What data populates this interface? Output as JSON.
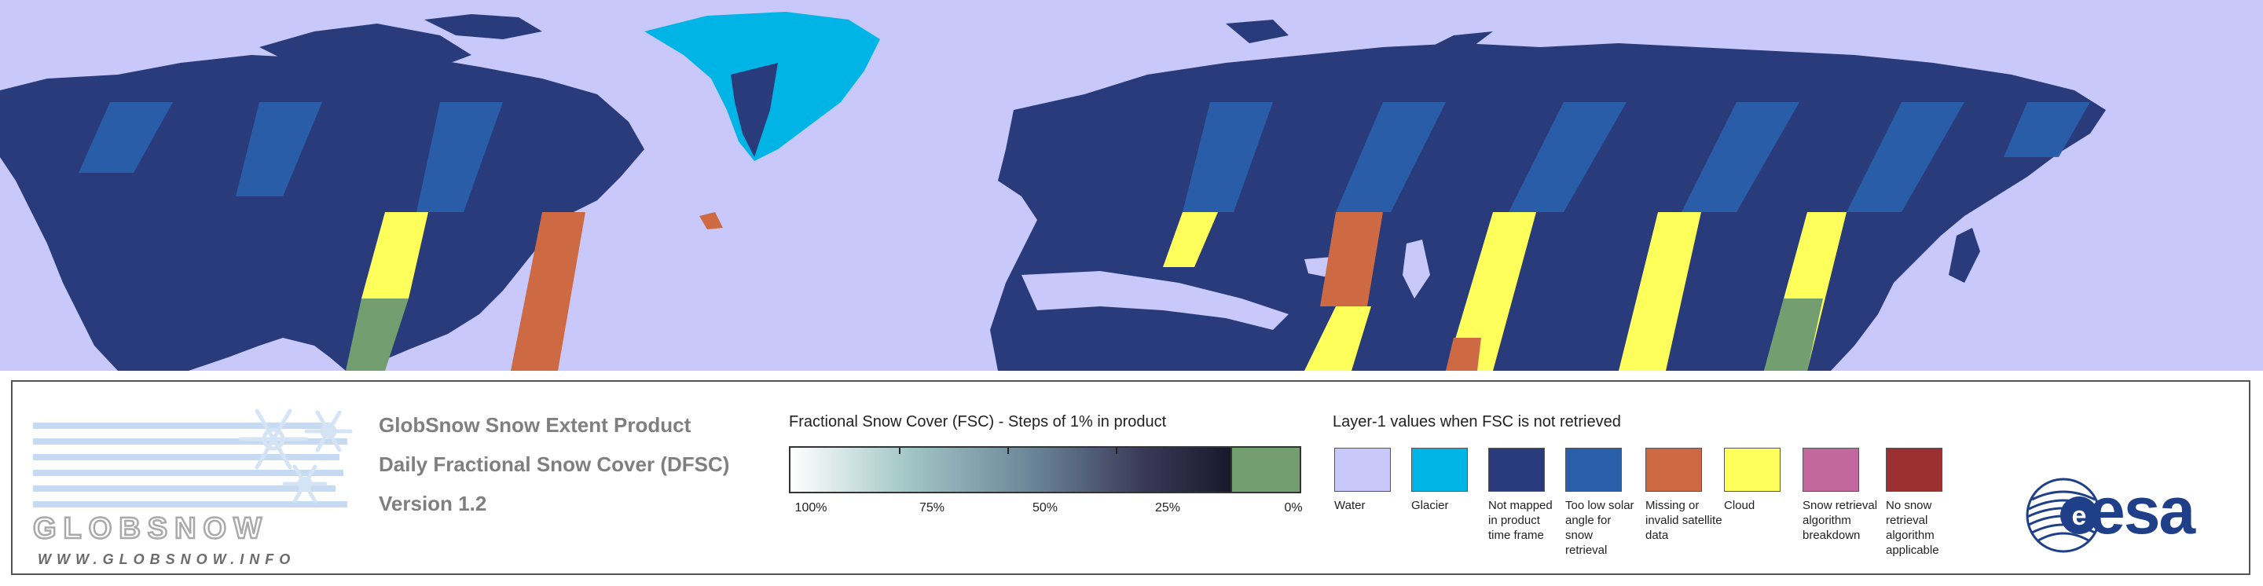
{
  "map": {
    "ocean_color": "#c8c8fa",
    "land_color": "#293b7a",
    "glacier_color": "#00b4e6",
    "solar_angle_color": "#2a5fab",
    "missing_color": "#cd6a44",
    "cloud_color": "#ffff5c",
    "snow_free_color": "#739e6f"
  },
  "logo": {
    "word": "GLOBSNOW",
    "url": "WWW.GLOBSNOW.INFO",
    "snowflake_icon": "snowflake-icon"
  },
  "product": {
    "line1": "GlobSnow Snow Extent Product",
    "line2": "Daily Fractional Snow Cover (DFSC)",
    "line3": "Version 1.2"
  },
  "fsc_legend": {
    "title": "Fractional Snow Cover (FSC) - Steps of 1% in product",
    "ticks": [
      {
        "label": "100%",
        "value": 100
      },
      {
        "label": "75%",
        "value": 75
      },
      {
        "label": "50%",
        "value": 50
      },
      {
        "label": "25%",
        "value": 25
      },
      {
        "label": "0%",
        "value": 0
      }
    ]
  },
  "layer_legend": {
    "title": "Layer-1 values when FSC is not retrieved",
    "items": [
      {
        "label": "Water",
        "color": "#c8c8fa"
      },
      {
        "label": "Glacier",
        "color": "#00b4e6"
      },
      {
        "label": "Not mapped in product time frame",
        "color": "#293b7a"
      },
      {
        "label": "Too low solar angle for snow retrieval",
        "color": "#2a5fab"
      },
      {
        "label": "Missing or invalid satellite data",
        "color": "#cd6a44"
      },
      {
        "label": "Cloud",
        "color": "#ffff5c"
      },
      {
        "label": "Snow retrieval algorithm breakdown",
        "color": "#c3689f"
      },
      {
        "label": "No snow retrieval algorithm applicable",
        "color": "#9c2f30"
      }
    ]
  },
  "esa": {
    "word": "esa"
  }
}
